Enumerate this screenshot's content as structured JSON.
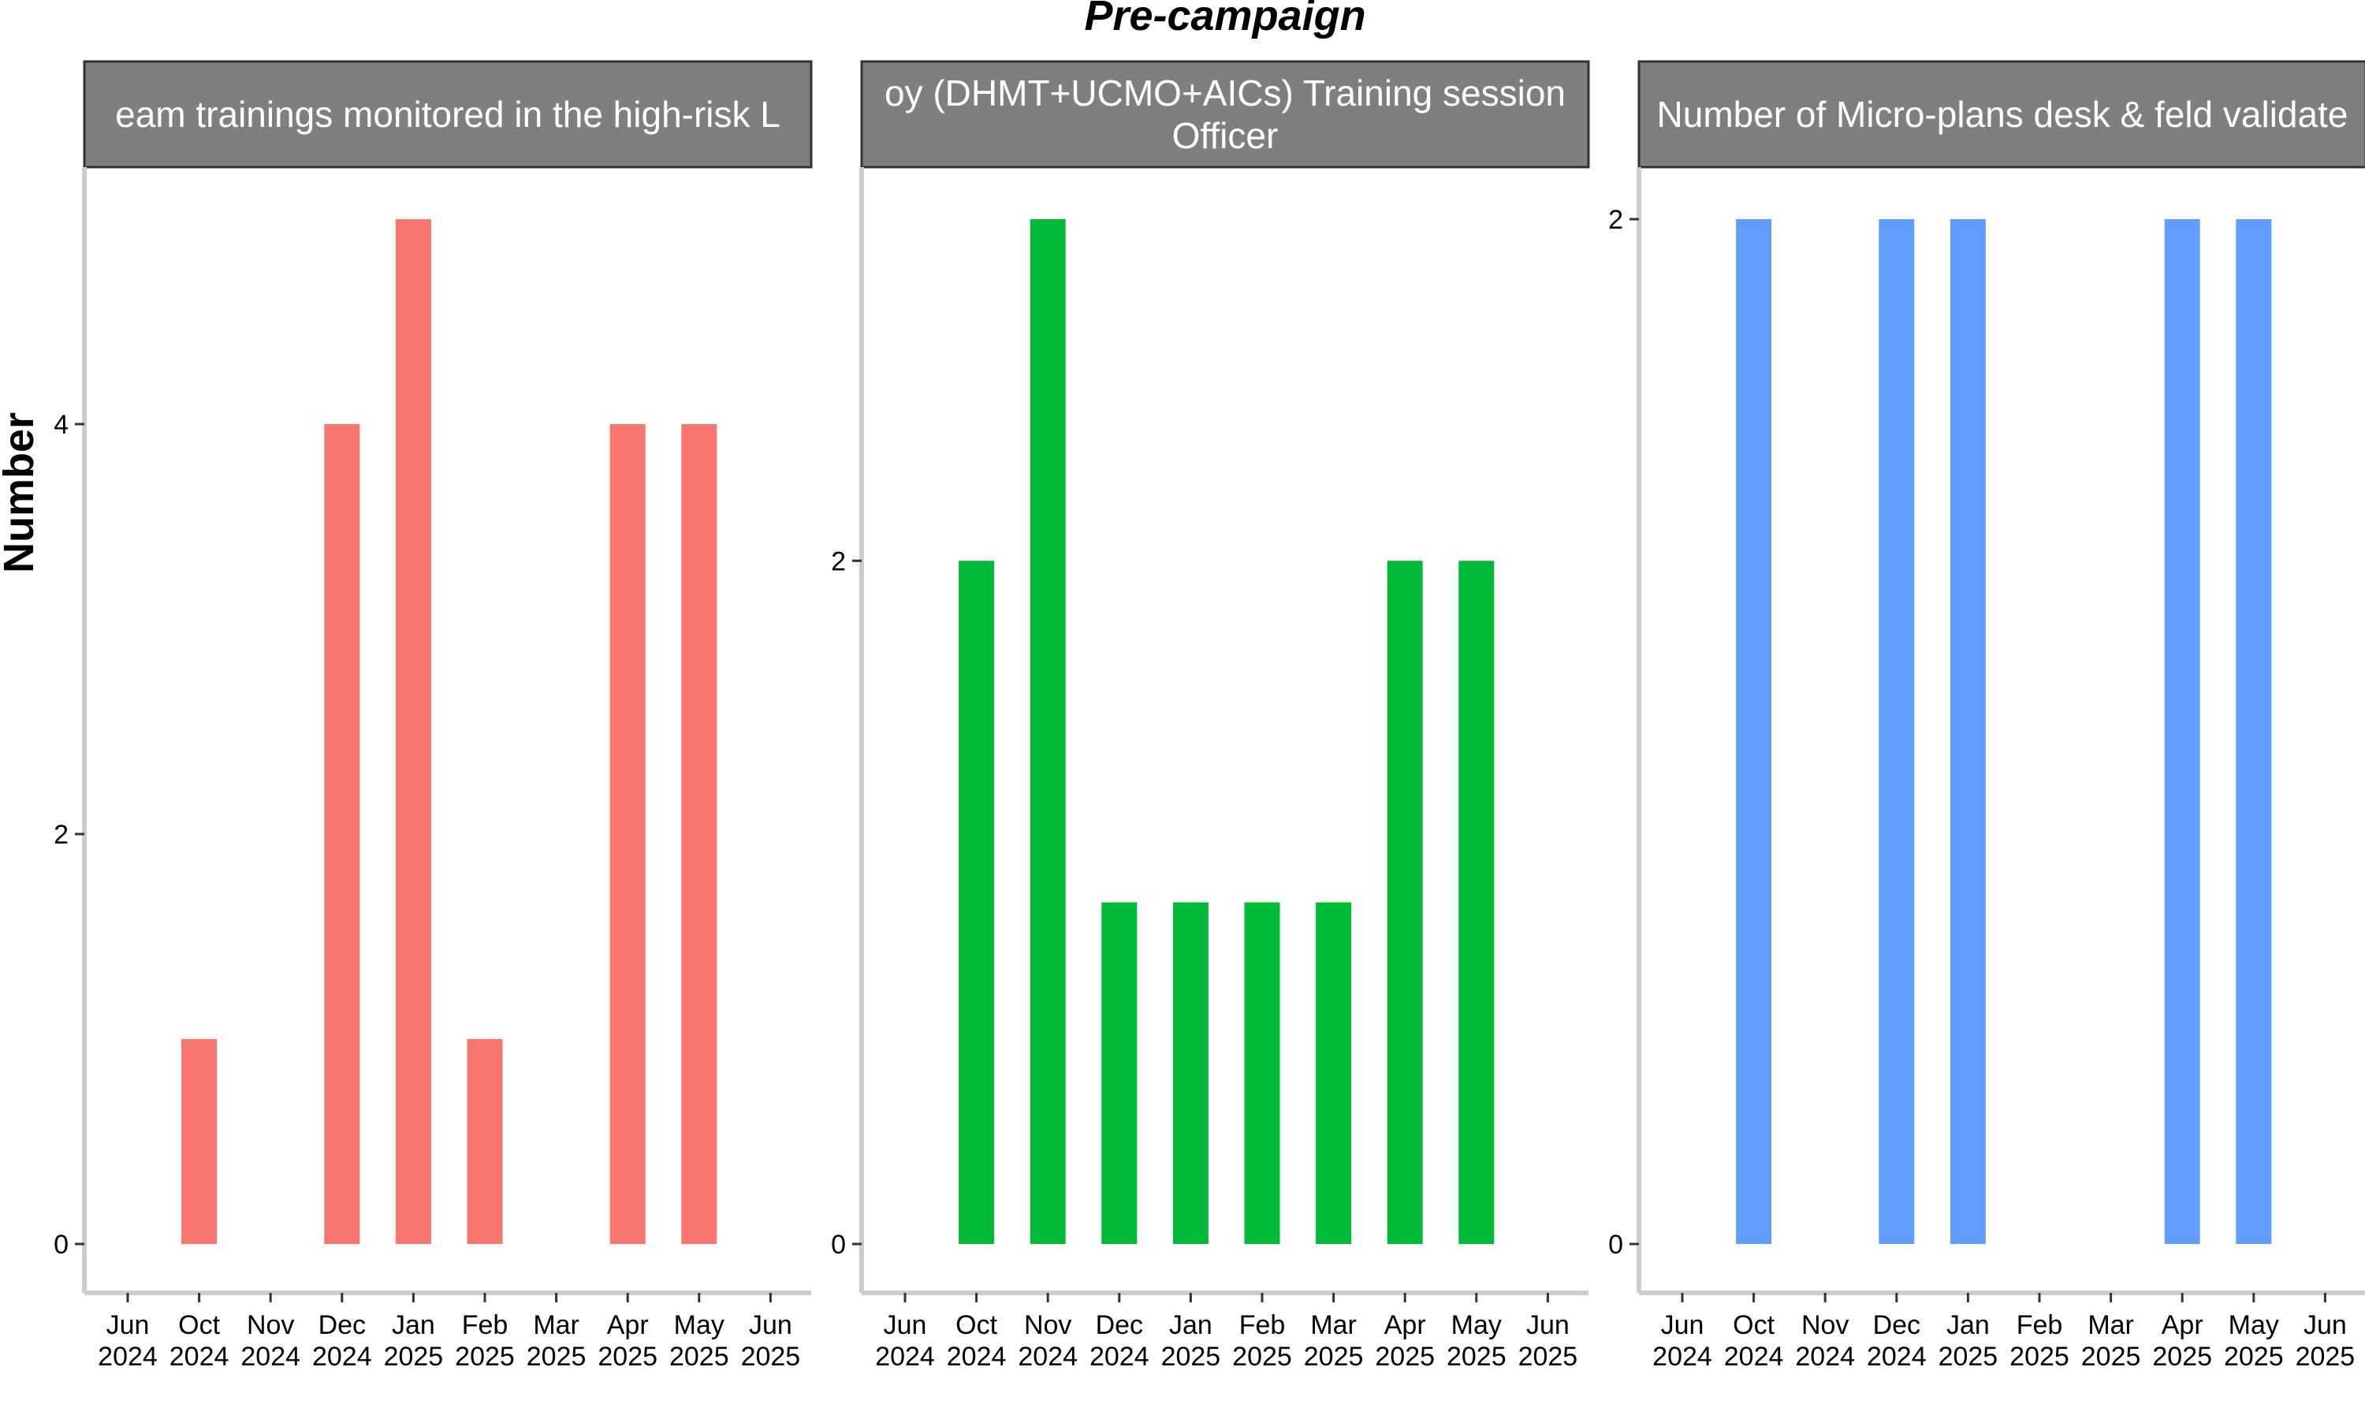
{
  "figure": {
    "title": "Pre-campaign",
    "ylabel": "Number",
    "strip_color": "#7f7f7f",
    "axis_color": "#cccccc"
  },
  "chart_data": [
    {
      "type": "bar",
      "facet_title": [
        "eam trainings monitored in the high-risk L"
      ],
      "color": "#f8766d",
      "x_ticks": [
        {
          "month": "Jun",
          "year": "2024"
        },
        {
          "month": "Oct",
          "year": "2024"
        },
        {
          "month": "Nov",
          "year": "2024"
        },
        {
          "month": "Dec",
          "year": "2024"
        },
        {
          "month": "Jan",
          "year": "2025"
        },
        {
          "month": "Feb",
          "year": "2025"
        },
        {
          "month": "Mar",
          "year": "2025"
        },
        {
          "month": "Apr",
          "year": "2025"
        },
        {
          "month": "May",
          "year": "2025"
        },
        {
          "month": "Jun",
          "year": "2025"
        }
      ],
      "values": [
        null,
        1,
        null,
        4,
        5,
        1,
        null,
        4,
        4,
        null
      ],
      "y_ticks": [
        0,
        2,
        4
      ],
      "ylim": [
        0,
        5
      ]
    },
    {
      "type": "bar",
      "facet_title": [
        "oy (DHMT+UCMO+AICs) Training session",
        "Officer"
      ],
      "color": "#00ba38",
      "x_ticks": [
        {
          "month": "Jun",
          "year": "2024"
        },
        {
          "month": "Oct",
          "year": "2024"
        },
        {
          "month": "Nov",
          "year": "2024"
        },
        {
          "month": "Dec",
          "year": "2024"
        },
        {
          "month": "Jan",
          "year": "2025"
        },
        {
          "month": "Feb",
          "year": "2025"
        },
        {
          "month": "Mar",
          "year": "2025"
        },
        {
          "month": "Apr",
          "year": "2025"
        },
        {
          "month": "May",
          "year": "2025"
        },
        {
          "month": "Jun",
          "year": "2025"
        }
      ],
      "values": [
        null,
        2,
        3,
        1,
        1,
        1,
        1,
        2,
        2,
        null
      ],
      "y_ticks": [
        0,
        2
      ],
      "ylim": [
        0,
        3
      ]
    },
    {
      "type": "bar",
      "facet_title": [
        "Number of Micro-plans desk & feld validate"
      ],
      "color": "#619cff",
      "x_ticks": [
        {
          "month": "Jun",
          "year": "2024"
        },
        {
          "month": "Oct",
          "year": "2024"
        },
        {
          "month": "Nov",
          "year": "2024"
        },
        {
          "month": "Dec",
          "year": "2024"
        },
        {
          "month": "Jan",
          "year": "2025"
        },
        {
          "month": "Feb",
          "year": "2025"
        },
        {
          "month": "Mar",
          "year": "2025"
        },
        {
          "month": "Apr",
          "year": "2025"
        },
        {
          "month": "May",
          "year": "2025"
        },
        {
          "month": "Jun",
          "year": "2025"
        }
      ],
      "values": [
        null,
        2,
        null,
        2,
        2,
        null,
        null,
        2,
        2,
        null
      ],
      "y_ticks": [
        0,
        2
      ],
      "ylim": [
        0,
        2
      ]
    }
  ]
}
